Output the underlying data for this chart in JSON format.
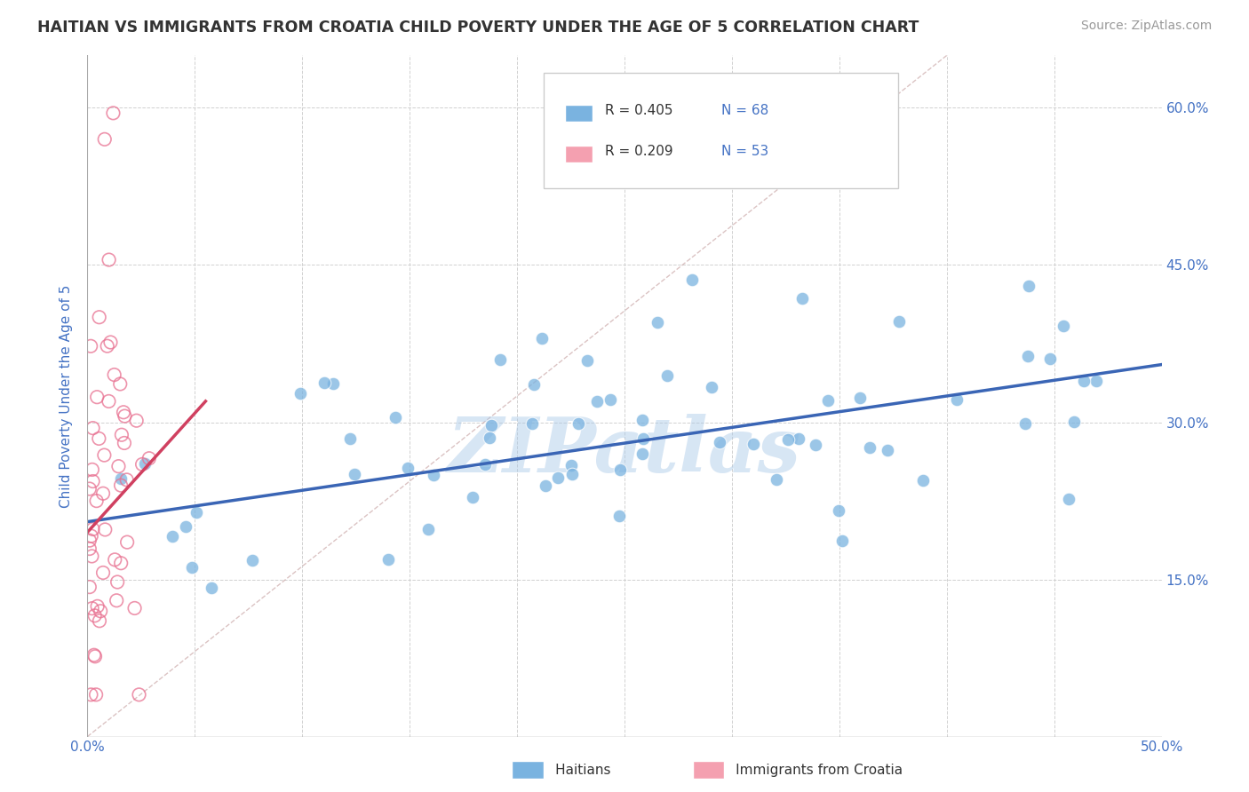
{
  "title": "HAITIAN VS IMMIGRANTS FROM CROATIA CHILD POVERTY UNDER THE AGE OF 5 CORRELATION CHART",
  "source": "Source: ZipAtlas.com",
  "ylabel": "Child Poverty Under the Age of 5",
  "xlim": [
    0.0,
    0.5
  ],
  "ylim": [
    0.0,
    0.65
  ],
  "xtick_positions": [
    0.0,
    0.05,
    0.1,
    0.15,
    0.2,
    0.25,
    0.3,
    0.35,
    0.4,
    0.45,
    0.5
  ],
  "xticklabels": [
    "0.0%",
    "",
    "",
    "",
    "",
    "",
    "",
    "",
    "",
    "",
    "50.0%"
  ],
  "ytick_positions": [
    0.0,
    0.15,
    0.3,
    0.45,
    0.6
  ],
  "yticklabels_right": [
    "",
    "15.0%",
    "30.0%",
    "45.0%",
    "60.0%"
  ],
  "blue_line_x": [
    0.0,
    0.5
  ],
  "blue_line_y": [
    0.205,
    0.355
  ],
  "pink_line_x": [
    0.0,
    0.055
  ],
  "pink_line_y": [
    0.195,
    0.32
  ],
  "diag_line_x": [
    0.0,
    0.4
  ],
  "diag_line_y": [
    0.0,
    0.65
  ],
  "watermark": "ZIPatlas",
  "watermark_color": "#a8c8e8",
  "blue_scatter_color": "#7ab3e0",
  "pink_scatter_color": "#f4a0b0",
  "pink_edge_color": "#e87090",
  "blue_line_color": "#3a65b5",
  "pink_line_color": "#d04060",
  "title_color": "#333333",
  "axis_label_color": "#4472c4",
  "legend_text_color": "#4472c4",
  "background_color": "#ffffff",
  "grid_color": "#cccccc",
  "legend_r1": "R = 0.405",
  "legend_n1": "N = 68",
  "legend_r2": "R = 0.209",
  "legend_n2": "N = 53",
  "bottom_legend_label1": "Haitians",
  "bottom_legend_label2": "Immigrants from Croatia"
}
